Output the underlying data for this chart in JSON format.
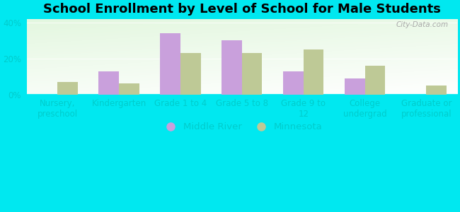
{
  "title": "School Enrollment by Level of School for Male Students",
  "categories": [
    "Nursery,\npreschool",
    "Kindergarten",
    "Grade 1 to 4",
    "Grade 5 to 8",
    "Grade 9 to\n12",
    "College\nundergrad",
    "Graduate or\nprofessional"
  ],
  "middle_river": [
    0,
    13,
    34,
    30,
    13,
    9,
    0
  ],
  "minnesota": [
    7,
    6,
    23,
    23,
    25,
    16,
    5
  ],
  "bar_color_mr": "#c9a0dc",
  "bar_color_mn": "#bec996",
  "outer_bg": "#00e8f0",
  "plot_bg_top": "#d8f0d8",
  "plot_bg_bottom": "#f0faf0",
  "ylim": [
    0,
    42
  ],
  "yticks": [
    0,
    20,
    40
  ],
  "ytick_labels": [
    "0%",
    "20%",
    "40%"
  ],
  "legend_labels": [
    "Middle River",
    "Minnesota"
  ],
  "title_fontsize": 13,
  "tick_fontsize": 8.5,
  "legend_fontsize": 9.5,
  "tick_color": "#00cccc",
  "watermark": "City-Data.com"
}
